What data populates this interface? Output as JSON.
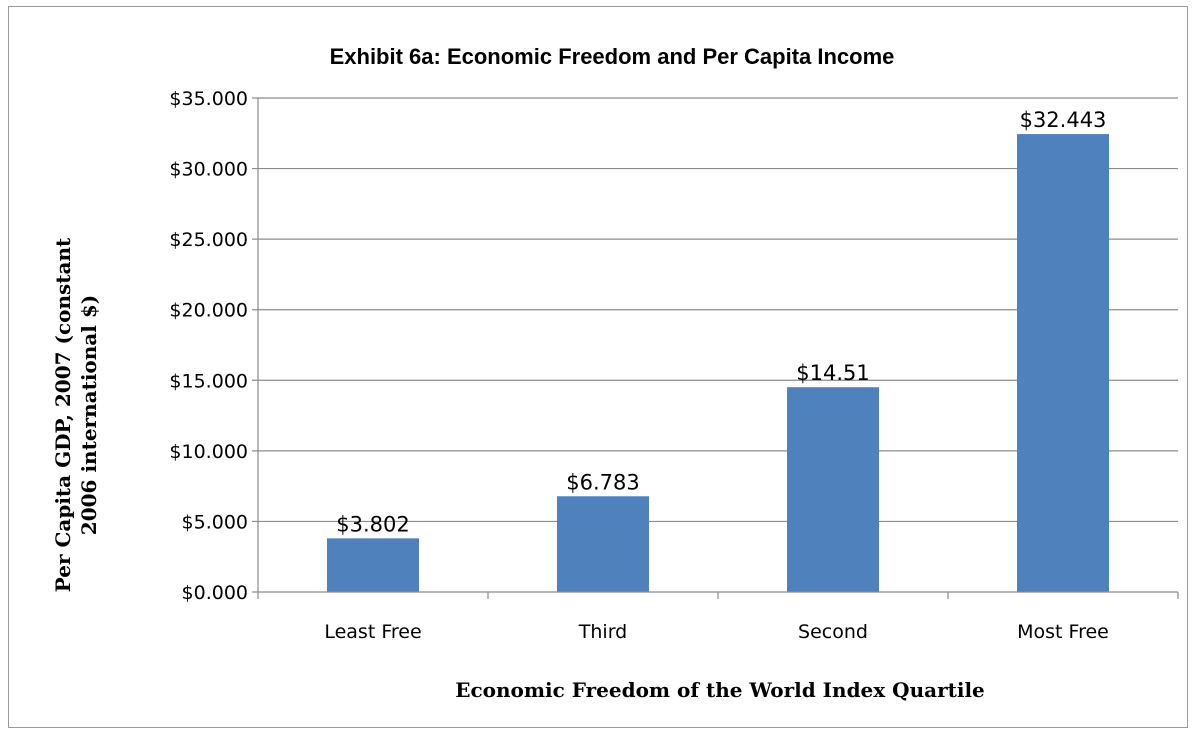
{
  "chart_data": {
    "type": "bar",
    "title": "Exhibit 6a: Economic Freedom and Per Capita Income",
    "xlabel": "Economic Freedom of the World Index Quartile",
    "ylabel_lines": [
      "Per Capita GDP, 2007 (constant",
      "2006 international $)"
    ],
    "categories": [
      "Least Free",
      "Third",
      "Second",
      "Most Free"
    ],
    "values": [
      3.802,
      6.783,
      14.51,
      32.443
    ],
    "data_labels": [
      "$3.802",
      "$6.783",
      "$14.51",
      "$32.443"
    ],
    "ylim": [
      0,
      35
    ],
    "yticks": [
      0,
      5,
      10,
      15,
      20,
      25,
      30,
      35
    ],
    "ytick_labels": [
      "$0.000",
      "$5.000",
      "$10.000",
      "$15.000",
      "$20.000",
      "$25.000",
      "$30.000",
      "$35.000"
    ],
    "grid": true,
    "legend": "none",
    "bar_color": "#4F81BD"
  }
}
